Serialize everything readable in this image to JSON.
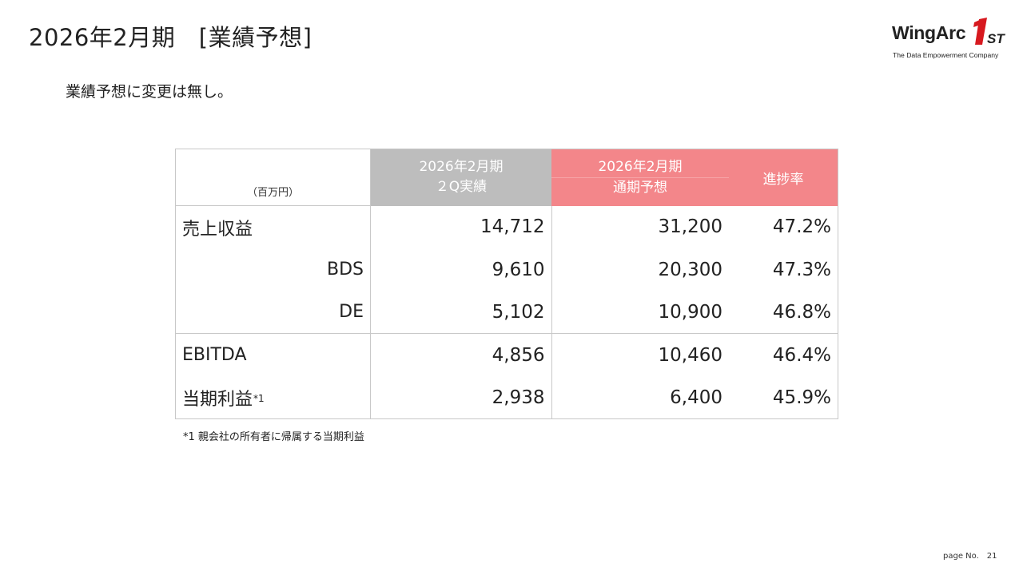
{
  "title": "2026年2月期　[業績予想]",
  "logo": {
    "name": "WingArc",
    "mark_text": "1ST",
    "tagline": "The Data Empowerment Company",
    "colors": {
      "mark": "#d7191f",
      "text": "#222222"
    }
  },
  "note": "業績予想に変更は無し。",
  "table": {
    "unit": "（百万円）",
    "headers": {
      "actual": [
        "2026年2月期",
        "２Q実績"
      ],
      "forecast": [
        "2026年2月期",
        "通期予想"
      ],
      "rate": "進捗率"
    },
    "rows": [
      {
        "label": "売上収益",
        "align": "left",
        "actual": "14,712",
        "forecast": "31,200",
        "rate": "47.2%"
      },
      {
        "label": "BDS",
        "align": "right",
        "actual": "9,610",
        "forecast": "20,300",
        "rate": "47.3%"
      },
      {
        "label": "DE",
        "align": "right",
        "actual": "5,102",
        "forecast": "10,900",
        "rate": "46.8%"
      },
      {
        "label": "EBITDA",
        "align": "left",
        "actual": "4,856",
        "forecast": "10,460",
        "rate": "46.4%"
      },
      {
        "label": "当期利益",
        "footnote_mark": "*1",
        "align": "left",
        "actual": "2,938",
        "forecast": "6,400",
        "rate": "45.9%"
      }
    ],
    "colors": {
      "actual_header": "#bdbdbd",
      "forecast_header": "#f3868a",
      "border": "#c8c8c8"
    }
  },
  "footnote": "*1 親会社の所有者に帰属する当期利益",
  "page": {
    "label": "page No.",
    "number": "21"
  }
}
